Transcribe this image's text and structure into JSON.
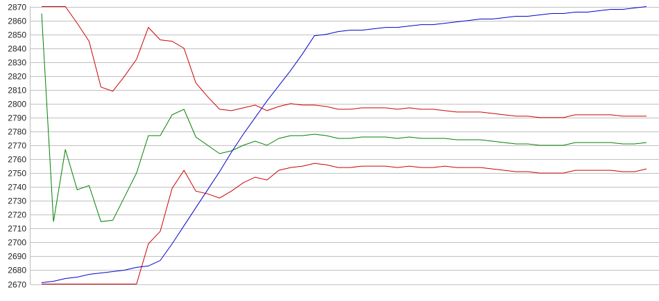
{
  "chart_data": {
    "type": "line",
    "title": "",
    "xlabel": "",
    "ylabel": "",
    "ylim": [
      2670,
      2870
    ],
    "yticks": [
      2670,
      2680,
      2690,
      2700,
      2710,
      2720,
      2730,
      2740,
      2750,
      2760,
      2770,
      2780,
      2790,
      2800,
      2810,
      2820,
      2830,
      2840,
      2850,
      2860,
      2870
    ],
    "grid": true,
    "legend": "none",
    "x": [
      0,
      1,
      2,
      3,
      4,
      5,
      6,
      7,
      8,
      9,
      10,
      11,
      12,
      13,
      14,
      15,
      16,
      17,
      18,
      19,
      20,
      21,
      22,
      23,
      24,
      25,
      26,
      27,
      28,
      29,
      30,
      31,
      32,
      33,
      34,
      35,
      36,
      37,
      38,
      39,
      40,
      41,
      42,
      43,
      44,
      45,
      46,
      47,
      48,
      49,
      50,
      51
    ],
    "series": [
      {
        "color": "#cc0000",
        "values": [
          2870,
          2870,
          2870,
          2858,
          2845,
          2812,
          2809,
          2820,
          2832,
          2855,
          2846,
          2845,
          2840,
          2815,
          2805,
          2796,
          2795,
          2797,
          2799,
          2795,
          2798,
          2800,
          2799,
          2799,
          2798,
          2796,
          2796,
          2797,
          2797,
          2797,
          2796,
          2797,
          2796,
          2796,
          2795,
          2794,
          2794,
          2794,
          2793,
          2792,
          2791,
          2791,
          2790,
          2790,
          2790,
          2792,
          2792,
          2792,
          2792,
          2791,
          2791,
          2791
        ]
      },
      {
        "color": "#008000",
        "values": [
          2865,
          2715,
          2767,
          2738,
          2741,
          2715,
          2716,
          2733,
          2750,
          2777,
          2777,
          2792,
          2796,
          2776,
          2770,
          2764,
          2766,
          2770,
          2773,
          2770,
          2775,
          2777,
          2777,
          2778,
          2777,
          2775,
          2775,
          2776,
          2776,
          2776,
          2775,
          2776,
          2775,
          2775,
          2775,
          2774,
          2774,
          2774,
          2773,
          2772,
          2771,
          2771,
          2770,
          2770,
          2770,
          2772,
          2772,
          2772,
          2772,
          2771,
          2771,
          2772
        ]
      },
      {
        "color": "#cc0000",
        "values": [
          2670,
          2670,
          2670,
          2670,
          2670,
          2670,
          2670,
          2670,
          2670,
          2699,
          2708,
          2739,
          2752,
          2737,
          2735,
          2732,
          2737,
          2743,
          2747,
          2745,
          2752,
          2754,
          2755,
          2757,
          2756,
          2754,
          2754,
          2755,
          2755,
          2755,
          2754,
          2755,
          2754,
          2754,
          2755,
          2754,
          2754,
          2754,
          2753,
          2752,
          2751,
          2751,
          2750,
          2750,
          2750,
          2752,
          2752,
          2752,
          2752,
          2751,
          2751,
          2753
        ]
      },
      {
        "color": "#0000cc",
        "values": [
          2671,
          2672,
          2674,
          2675,
          2677,
          2678,
          2679,
          2680,
          2682,
          2683,
          2687,
          2699,
          2712,
          2725,
          2738,
          2751,
          2765,
          2778,
          2790,
          2802,
          2813,
          2824,
          2836,
          2849,
          2850,
          2852,
          2853,
          2853,
          2854,
          2855,
          2855,
          2856,
          2857,
          2857,
          2858,
          2859,
          2860,
          2861,
          2861,
          2862,
          2863,
          2863,
          2864,
          2865,
          2865,
          2866,
          2866,
          2867,
          2868,
          2868,
          2869,
          2870
        ]
      }
    ]
  }
}
